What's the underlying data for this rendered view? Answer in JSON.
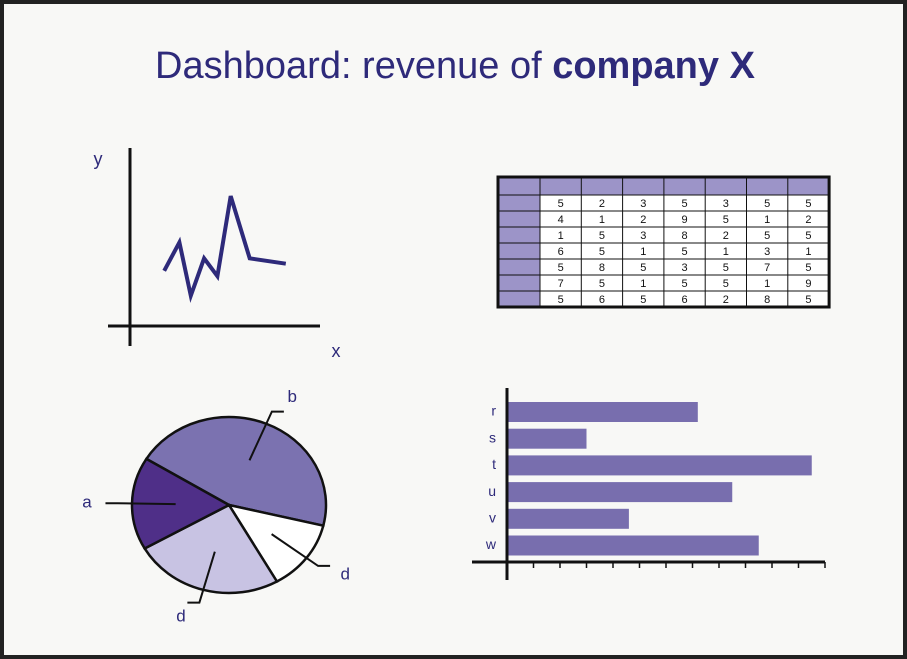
{
  "title": {
    "text": "Dashboard: revenue of",
    "emphasis": "company X"
  },
  "chart_data": [
    {
      "type": "line",
      "x_label": "x",
      "y_label": "y",
      "color": "#2e2a7a",
      "x": [
        1.8,
        2.6,
        3.2,
        3.9,
        4.6,
        5.3,
        6.3,
        8.2
      ],
      "values": [
        3.1,
        4.7,
        1.7,
        3.8,
        2.8,
        7.3,
        3.8,
        3.5
      ],
      "xlim": [
        0,
        10
      ],
      "ylim": [
        0,
        10
      ]
    },
    {
      "type": "pie",
      "categories": [
        "b",
        "d",
        "d",
        "a"
      ],
      "values": [
        45,
        13,
        25,
        17
      ],
      "colors": [
        "#7b72b0",
        "#ffffff",
        "#c8c3e3",
        "#4f2f88"
      ]
    },
    {
      "type": "bar",
      "categories": [
        "r",
        "s",
        "t",
        "u",
        "v",
        "w"
      ],
      "values": [
        7.2,
        3.0,
        11.5,
        8.5,
        4.6,
        9.5
      ],
      "color": "#786eae",
      "xlim": [
        0,
        12
      ],
      "xticks": [
        0,
        1,
        2,
        3,
        4,
        5,
        6,
        7,
        8,
        9,
        10,
        11,
        12
      ]
    }
  ],
  "table": {
    "header_color": "#9c94c8",
    "rows": [
      [
        5,
        2,
        3,
        5,
        3,
        5,
        5
      ],
      [
        4,
        1,
        2,
        9,
        5,
        1,
        2
      ],
      [
        1,
        5,
        3,
        8,
        2,
        5,
        5
      ],
      [
        6,
        5,
        1,
        5,
        1,
        3,
        1
      ],
      [
        5,
        8,
        5,
        3,
        5,
        7,
        5
      ],
      [
        7,
        5,
        1,
        5,
        5,
        1,
        9
      ],
      [
        5,
        6,
        5,
        6,
        2,
        8,
        5
      ]
    ]
  }
}
